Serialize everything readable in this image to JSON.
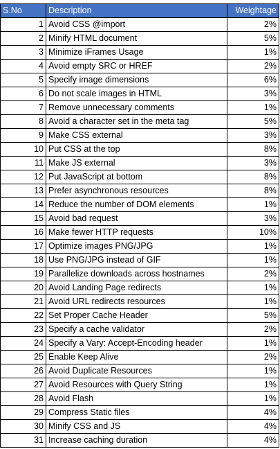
{
  "headers": {
    "sno": "S.No",
    "description": "Description",
    "weightage": "Weightage"
  },
  "rows": [
    {
      "sno": "1",
      "description": "Avoid CSS @import",
      "weightage": "2%"
    },
    {
      "sno": "2",
      "description": "Minify HTML document",
      "weightage": "5%"
    },
    {
      "sno": "3",
      "description": "Minimize iFrames Usage",
      "weightage": "1%"
    },
    {
      "sno": "4",
      "description": "Avoid empty SRC or HREF",
      "weightage": "2%"
    },
    {
      "sno": "5",
      "description": "Specify image dimensions",
      "weightage": "6%"
    },
    {
      "sno": "6",
      "description": "Do not scale images in HTML",
      "weightage": "3%"
    },
    {
      "sno": "7",
      "description": "Remove unnecessary comments",
      "weightage": "1%"
    },
    {
      "sno": "8",
      "description": "Avoid a character set in the meta tag",
      "weightage": "5%"
    },
    {
      "sno": "9",
      "description": "Make CSS external",
      "weightage": "3%"
    },
    {
      "sno": "10",
      "description": " Put CSS at the top",
      "weightage": "8%"
    },
    {
      "sno": "11",
      "description": "Make JS external",
      "weightage": "3%"
    },
    {
      "sno": "12",
      "description": "Put JavaScript at bottom",
      "weightage": "8%"
    },
    {
      "sno": "13",
      "description": "Prefer asynchronous resources",
      "weightage": "8%"
    },
    {
      "sno": "14",
      "description": "Reduce the number of DOM elements",
      "weightage": "1%"
    },
    {
      "sno": "15",
      "description": "Avoid bad request",
      "weightage": "3%"
    },
    {
      "sno": "16",
      "description": "Make fewer HTTP requests",
      "weightage": "10%"
    },
    {
      "sno": "17",
      "description": "Optimize images PNG/JPG",
      "weightage": "1%"
    },
    {
      "sno": "18",
      "description": "Use PNG/JPG instead of GIF",
      "weightage": "1%"
    },
    {
      "sno": "19",
      "description": "Parallelize downloads across hostnames",
      "weightage": "2%"
    },
    {
      "sno": "20",
      "description": "Avoid Landing Page redirects",
      "weightage": "1%"
    },
    {
      "sno": "21",
      "description": "Avoid URL redirects resources",
      "weightage": "1%"
    },
    {
      "sno": "22",
      "description": "Set Proper Cache Header",
      "weightage": "5%"
    },
    {
      "sno": "23",
      "description": "Specify a cache validator",
      "weightage": "2%"
    },
    {
      "sno": "24",
      "description": "Specify a Vary: Accept-Encoding header",
      "weightage": "1%"
    },
    {
      "sno": "25",
      "description": "Enable Keep Alive",
      "weightage": "2%"
    },
    {
      "sno": "26",
      "description": "Avoid Duplicate Resources",
      "weightage": "1%"
    },
    {
      "sno": "27",
      "description": "Avoid Resources with Query String",
      "weightage": "1%"
    },
    {
      "sno": "28",
      "description": "Avoid Flash",
      "weightage": "1%"
    },
    {
      "sno": "29",
      "description": "Compress Static files",
      "weightage": "4%"
    },
    {
      "sno": "30",
      "description": "Minify CSS and JS",
      "weightage": "4%"
    },
    {
      "sno": "31",
      "description": "Increase caching duration",
      "weightage": "4%"
    }
  ]
}
